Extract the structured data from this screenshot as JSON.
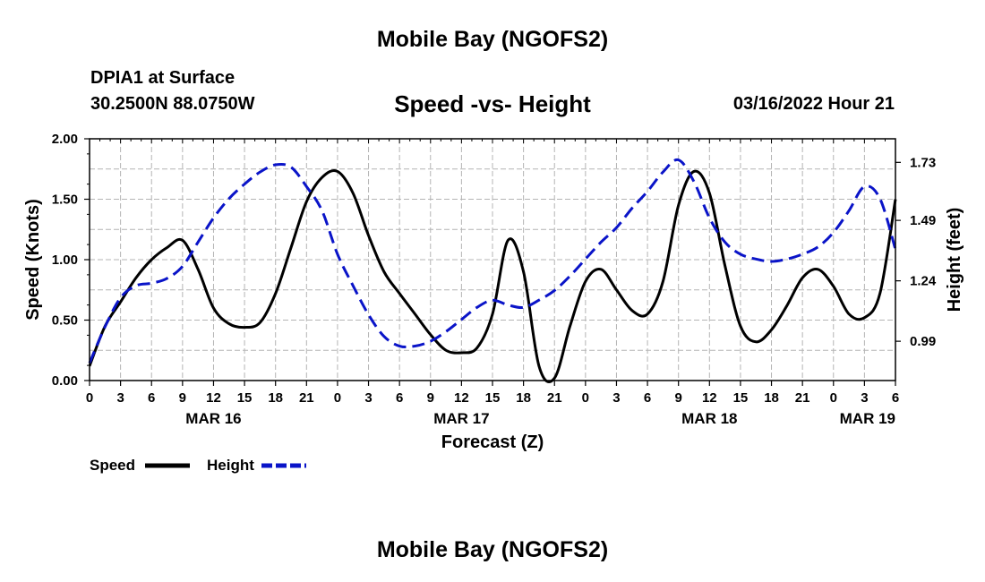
{
  "header": {
    "title": "Mobile Bay (NGOFS2)",
    "station": "DPIA1 at Surface",
    "coords": "30.2500N  88.0750W",
    "chart_title": "Speed -vs- Height",
    "datetime": "03/16/2022 Hour 21",
    "bottom_title": "Mobile Bay (NGOFS2)"
  },
  "legend": {
    "speed_label": "Speed",
    "height_label": "Height"
  },
  "colors": {
    "speed": "#000000",
    "height": "#0a14c8",
    "grid": "#b4b4b4"
  },
  "chart_data": {
    "type": "line",
    "xlabel": "Forecast (Z)",
    "ylabel": "Speed (Knots)",
    "y2label": "Height (feet)",
    "x_range": [
      0,
      78
    ],
    "ylim": [
      0,
      2
    ],
    "y2lim": [
      0.8275,
      1.8275
    ],
    "y_ticks": [
      "0.00",
      "0.50",
      "1.00",
      "1.50",
      "2.00"
    ],
    "y2_ticks": [
      {
        "value": 0.99,
        "label": "0.99"
      },
      {
        "value": 1.24,
        "label": "1.24"
      },
      {
        "value": 1.49,
        "label": "1.49"
      },
      {
        "value": 1.73,
        "label": "1.73"
      }
    ],
    "x_tick_labels": [
      "0",
      "3",
      "6",
      "9",
      "12",
      "15",
      "18",
      "21",
      "0",
      "3",
      "6",
      "9",
      "12",
      "15",
      "18",
      "21",
      "0",
      "3",
      "6",
      "9",
      "12",
      "15",
      "18",
      "21",
      "0",
      "3",
      "6"
    ],
    "date_labels": [
      {
        "label": "MAR 16",
        "hour": 12
      },
      {
        "label": "MAR 17",
        "hour": 36
      },
      {
        "label": "MAR 18",
        "hour": 60
      },
      {
        "label": "MAR 19",
        "hour": 78
      }
    ],
    "grid": true,
    "series": [
      {
        "name": "Speed",
        "axis": "left",
        "style": "solid",
        "x": [
          0,
          1.5,
          3,
          4.5,
          6,
          7.5,
          9,
          10.5,
          12,
          13.5,
          15,
          16.5,
          18,
          19.5,
          21,
          22.5,
          24,
          25.5,
          27,
          28.5,
          30,
          31.5,
          33,
          34.5,
          36,
          37.5,
          39,
          40.5,
          42,
          43.5,
          45,
          46.5,
          48,
          49.5,
          51,
          52.5,
          54,
          55.5,
          57,
          58.5,
          60,
          61.5,
          63,
          64.5,
          66,
          67.5,
          69,
          70.5,
          72,
          73.5,
          75,
          76.5,
          78
        ],
        "y": [
          0.12,
          0.45,
          0.65,
          0.85,
          1.0,
          1.1,
          1.16,
          0.92,
          0.6,
          0.47,
          0.44,
          0.48,
          0.72,
          1.1,
          1.48,
          1.68,
          1.73,
          1.55,
          1.2,
          0.9,
          0.72,
          0.55,
          0.38,
          0.25,
          0.23,
          0.27,
          0.55,
          1.16,
          0.9,
          0.12,
          0.02,
          0.45,
          0.82,
          0.92,
          0.75,
          0.58,
          0.55,
          0.82,
          1.45,
          1.73,
          1.55,
          0.95,
          0.45,
          0.32,
          0.42,
          0.62,
          0.85,
          0.92,
          0.78,
          0.55,
          0.52,
          0.72,
          1.5
        ]
      },
      {
        "name": "Height",
        "axis": "right",
        "style": "dashed",
        "x": [
          0,
          1.5,
          3,
          4.5,
          6,
          7.5,
          9,
          10.5,
          12,
          13.5,
          15,
          16.5,
          18,
          19.5,
          21,
          22.5,
          24,
          25.5,
          27,
          28.5,
          30,
          31.5,
          33,
          34.5,
          36,
          37.5,
          39,
          40.5,
          42,
          43.5,
          45,
          46.5,
          48,
          49.5,
          51,
          52.5,
          54,
          55.5,
          57,
          58.5,
          60,
          61.5,
          63,
          64.5,
          66,
          67.5,
          69,
          70.5,
          72,
          73.5,
          75,
          76.5,
          78
        ],
        "y": [
          0.9,
          1.05,
          1.17,
          1.22,
          1.23,
          1.25,
          1.3,
          1.4,
          1.5,
          1.58,
          1.64,
          1.69,
          1.72,
          1.71,
          1.63,
          1.53,
          1.35,
          1.22,
          1.1,
          1.01,
          0.97,
          0.97,
          0.99,
          1.03,
          1.08,
          1.13,
          1.16,
          1.14,
          1.13,
          1.16,
          1.2,
          1.26,
          1.33,
          1.4,
          1.46,
          1.54,
          1.61,
          1.69,
          1.74,
          1.65,
          1.5,
          1.4,
          1.35,
          1.33,
          1.32,
          1.33,
          1.35,
          1.38,
          1.44,
          1.53,
          1.63,
          1.58,
          1.37
        ]
      }
    ]
  }
}
